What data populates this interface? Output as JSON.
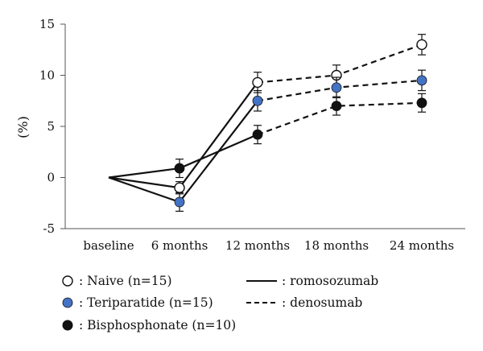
{
  "chart_data": {
    "type": "line",
    "ylabel": "(%)",
    "xlabel": "",
    "categories": [
      "baseline",
      "6 months",
      "12 months",
      "18 months",
      "24 months"
    ],
    "ylim": [
      -5,
      15
    ],
    "yticks": [
      -5,
      0,
      5,
      10,
      15
    ],
    "grid": false,
    "legend_position": "bottom",
    "series": [
      {
        "name": ": Naive (n=15)",
        "marker": "open-circle",
        "marker_color": "#ffffff",
        "values": [
          0,
          -1.0,
          9.3,
          10.0,
          13.0
        ],
        "errors": [
          0,
          0.6,
          1.0,
          1.0,
          1.0
        ]
      },
      {
        "name": ": Teriparatide (n=15)",
        "marker": "filled-circle",
        "marker_color": "#4472c4",
        "values": [
          0,
          -2.4,
          7.5,
          8.8,
          9.5
        ],
        "errors": [
          0,
          0.9,
          1.0,
          1.0,
          1.0
        ]
      },
      {
        "name": ": Bisphosphonate (n=10)",
        "marker": "filled-circle",
        "marker_color": "#111111",
        "values": [
          0,
          0.9,
          4.2,
          7.0,
          7.3
        ],
        "errors": [
          0,
          0.9,
          0.9,
          0.9,
          0.9
        ]
      }
    ],
    "line_styles": [
      {
        "label": ": romosozumab",
        "dash": "solid",
        "segments": "baseline to 12 months"
      },
      {
        "label": ": denosumab",
        "dash": "dashed",
        "segments": "12 months to 24 months"
      }
    ],
    "colors": {
      "line": "#111111",
      "axis": "#555555"
    }
  }
}
